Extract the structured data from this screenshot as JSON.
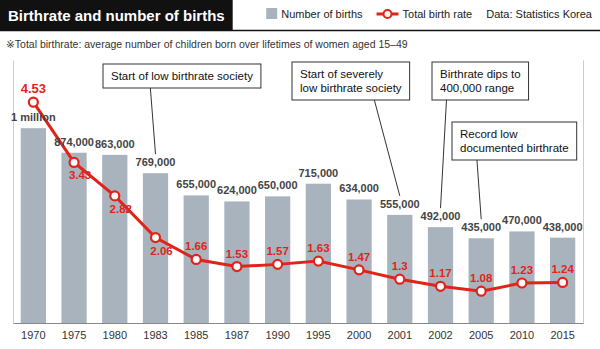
{
  "chart_data": {
    "type": "combo",
    "title": "Birthrate and number of births",
    "note": "※Total birthrate: average number of children born over lifetimes of women aged 15–49",
    "source": "Data: Statistics Korea",
    "categories": [
      "1970",
      "1975",
      "1980",
      "1983",
      "1985",
      "1987",
      "1990",
      "1995",
      "2000",
      "2001",
      "2002",
      "2005",
      "2010",
      "2015"
    ],
    "series": [
      {
        "name": "Number of births",
        "type": "bar",
        "color": "#a9b3be",
        "values": [
          1000000,
          874000,
          863000,
          769000,
          655000,
          624000,
          650000,
          715000,
          634000,
          555000,
          492000,
          435000,
          470000,
          438000
        ],
        "value_labels": [
          "1 million",
          "874,000",
          "863,000",
          "769,000",
          "655,000",
          "624,000",
          "650,000",
          "715,000",
          "634,000",
          "555,000",
          "492,000",
          "435,000",
          "470,000",
          "438,000"
        ],
        "data_labels": true
      },
      {
        "name": "Total birth rate",
        "type": "line",
        "axis": "y2",
        "color": "#e2231a",
        "marker": "circle",
        "values": [
          4.53,
          3.43,
          2.82,
          2.06,
          1.66,
          1.53,
          1.57,
          1.63,
          1.47,
          1.3,
          1.17,
          1.08,
          1.23,
          1.24
        ],
        "data_labels": true
      }
    ],
    "ylim": [
      0,
      1350000
    ],
    "y2lim": [
      0.5,
      5.3
    ],
    "tick_labels": "x",
    "grid": false,
    "legend": "top",
    "annotations": [
      {
        "text": [
          "Start of low birthrate society"
        ],
        "category": "1983"
      },
      {
        "text": [
          "Start of severely",
          "low birthrate society"
        ],
        "category": "2001"
      },
      {
        "text": [
          "Birthrate dips to",
          "400,000 range"
        ],
        "category": "2002"
      },
      {
        "text": [
          "Record low",
          "documented birthrate"
        ],
        "category": "2005"
      }
    ]
  }
}
